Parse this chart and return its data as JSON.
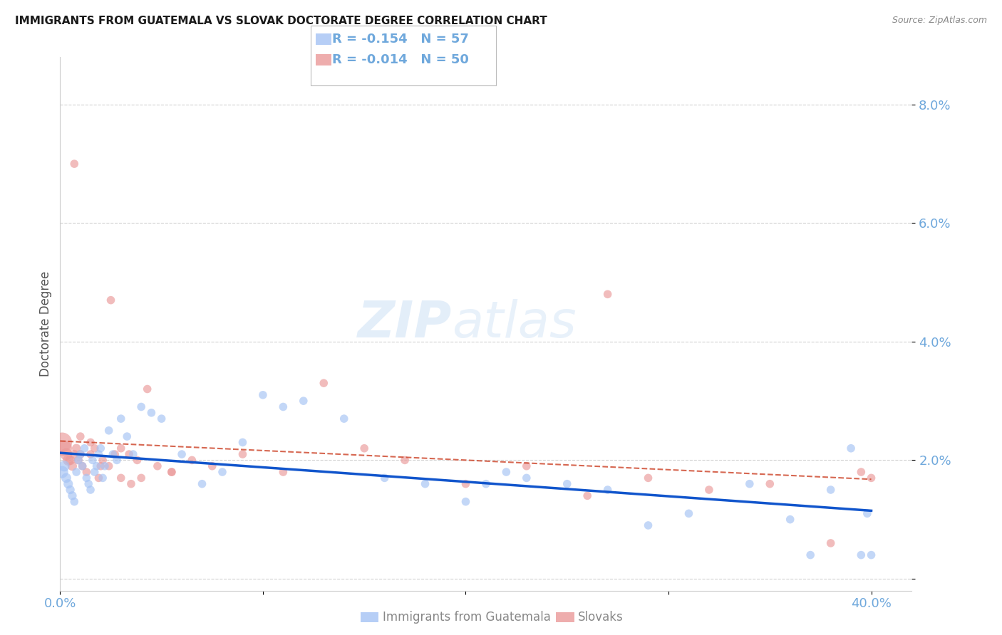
{
  "title": "IMMIGRANTS FROM GUATEMALA VS SLOVAK DOCTORATE DEGREE CORRELATION CHART",
  "source": "Source: ZipAtlas.com",
  "ylabel": "Doctorate Degree",
  "xlim": [
    0.0,
    0.42
  ],
  "ylim": [
    -0.002,
    0.088
  ],
  "xticks": [
    0.0,
    0.1,
    0.2,
    0.3,
    0.4
  ],
  "xtick_labels": [
    "0.0%",
    "",
    "",
    "",
    "40.0%"
  ],
  "yticks": [
    0.0,
    0.02,
    0.04,
    0.06,
    0.08
  ],
  "ytick_labels": [
    "",
    "2.0%",
    "4.0%",
    "6.0%",
    "8.0%"
  ],
  "legend_r_blue": "R = -0.154",
  "legend_n_blue": "N = 57",
  "legend_r_pink": "R = -0.014",
  "legend_n_pink": "N = 50",
  "blue_color": "#a4c2f4",
  "pink_color": "#ea9999",
  "blue_line_color": "#1155cc",
  "pink_line_color": "#cc4125",
  "axis_color": "#6fa8dc",
  "grid_color": "#cccccc",
  "watermark_zip": "ZIP",
  "watermark_atlas": "atlas",
  "blue_x": [
    0.001,
    0.002,
    0.003,
    0.004,
    0.005,
    0.006,
    0.007,
    0.008,
    0.009,
    0.01,
    0.011,
    0.012,
    0.013,
    0.014,
    0.015,
    0.016,
    0.017,
    0.018,
    0.019,
    0.02,
    0.021,
    0.022,
    0.024,
    0.026,
    0.028,
    0.03,
    0.033,
    0.036,
    0.04,
    0.045,
    0.05,
    0.06,
    0.07,
    0.08,
    0.09,
    0.1,
    0.11,
    0.12,
    0.14,
    0.16,
    0.18,
    0.2,
    0.21,
    0.22,
    0.23,
    0.25,
    0.27,
    0.29,
    0.31,
    0.34,
    0.36,
    0.37,
    0.38,
    0.39,
    0.395,
    0.398,
    0.4
  ],
  "blue_y": [
    0.018,
    0.019,
    0.017,
    0.016,
    0.015,
    0.014,
    0.013,
    0.018,
    0.02,
    0.021,
    0.019,
    0.022,
    0.017,
    0.016,
    0.015,
    0.02,
    0.018,
    0.019,
    0.021,
    0.022,
    0.017,
    0.019,
    0.025,
    0.021,
    0.02,
    0.027,
    0.024,
    0.021,
    0.029,
    0.028,
    0.027,
    0.021,
    0.016,
    0.018,
    0.023,
    0.031,
    0.029,
    0.03,
    0.027,
    0.017,
    0.016,
    0.013,
    0.016,
    0.018,
    0.017,
    0.016,
    0.015,
    0.009,
    0.011,
    0.016,
    0.01,
    0.004,
    0.015,
    0.022,
    0.004,
    0.011,
    0.004
  ],
  "blue_sizes": [
    150,
    120,
    100,
    90,
    80,
    80,
    70,
    70,
    70,
    70,
    70,
    70,
    70,
    70,
    70,
    70,
    70,
    70,
    70,
    70,
    70,
    70,
    70,
    70,
    70,
    70,
    70,
    70,
    70,
    70,
    70,
    70,
    70,
    70,
    70,
    70,
    70,
    70,
    70,
    70,
    70,
    70,
    70,
    70,
    70,
    70,
    70,
    70,
    70,
    70,
    70,
    70,
    70,
    70,
    70,
    70,
    70
  ],
  "pink_x": [
    0.001,
    0.002,
    0.003,
    0.004,
    0.005,
    0.006,
    0.007,
    0.008,
    0.009,
    0.01,
    0.011,
    0.013,
    0.015,
    0.017,
    0.019,
    0.021,
    0.024,
    0.027,
    0.03,
    0.034,
    0.038,
    0.043,
    0.048,
    0.055,
    0.065,
    0.075,
    0.09,
    0.11,
    0.13,
    0.15,
    0.17,
    0.2,
    0.23,
    0.26,
    0.29,
    0.32,
    0.35,
    0.38,
    0.395,
    0.4,
    0.007,
    0.01,
    0.015,
    0.02,
    0.025,
    0.03,
    0.035,
    0.04,
    0.055,
    0.27
  ],
  "pink_y": [
    0.023,
    0.022,
    0.021,
    0.02,
    0.02,
    0.019,
    0.021,
    0.022,
    0.02,
    0.021,
    0.019,
    0.018,
    0.021,
    0.022,
    0.017,
    0.02,
    0.019,
    0.021,
    0.022,
    0.021,
    0.02,
    0.032,
    0.019,
    0.018,
    0.02,
    0.019,
    0.021,
    0.018,
    0.033,
    0.022,
    0.02,
    0.016,
    0.019,
    0.014,
    0.017,
    0.015,
    0.016,
    0.006,
    0.018,
    0.017,
    0.07,
    0.024,
    0.023,
    0.019,
    0.047,
    0.017,
    0.016,
    0.017,
    0.018,
    0.048
  ],
  "pink_sizes": [
    400,
    250,
    150,
    120,
    100,
    90,
    80,
    80,
    75,
    75,
    70,
    70,
    70,
    70,
    70,
    70,
    70,
    70,
    70,
    70,
    70,
    70,
    70,
    70,
    70,
    70,
    70,
    70,
    70,
    70,
    70,
    70,
    70,
    70,
    70,
    70,
    70,
    70,
    70,
    70,
    70,
    70,
    70,
    70,
    70,
    70,
    70,
    70,
    70,
    70
  ]
}
